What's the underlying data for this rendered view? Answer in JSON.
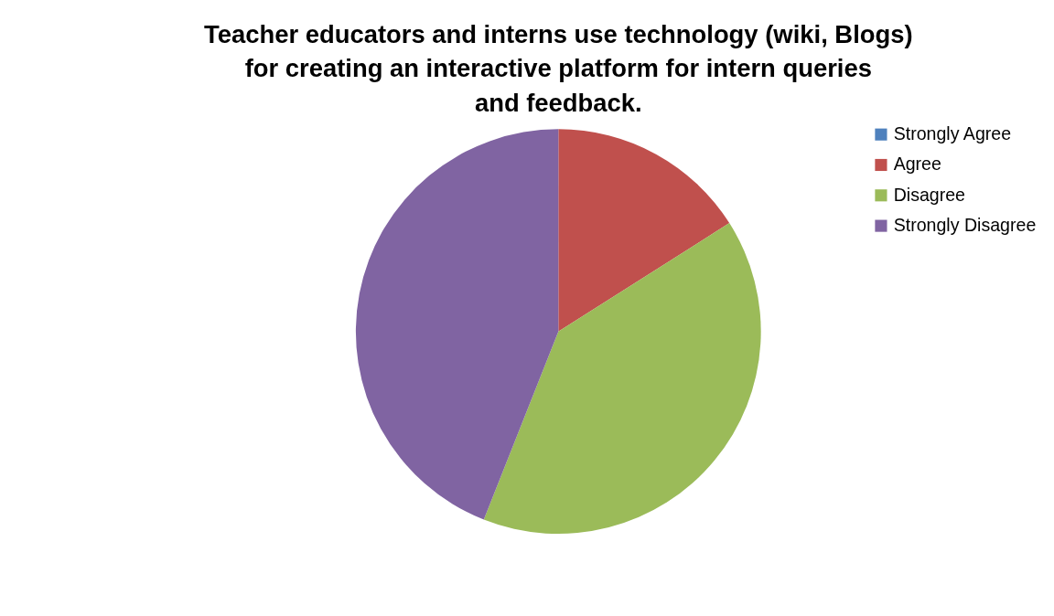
{
  "chart_data": {
    "type": "pie",
    "title": "Teacher educators and interns use technology (wiki, Blogs) for creating an interactive platform for intern queries and feedback.",
    "categories": [
      "Strongly Agree",
      "Agree",
      "Disagree",
      "Strongly Disagree"
    ],
    "values": [
      0,
      16,
      40,
      44
    ],
    "colors": [
      "#4f81bd",
      "#c0504d",
      "#9bbb59",
      "#8064a2"
    ],
    "legend": "right"
  }
}
